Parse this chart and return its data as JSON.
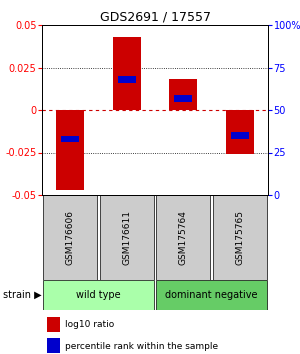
{
  "title": "GDS2691 / 17557",
  "samples": [
    "GSM176606",
    "GSM176611",
    "GSM175764",
    "GSM175765"
  ],
  "log10_ratio": [
    -0.047,
    0.043,
    0.018,
    -0.026
  ],
  "percentile_rank": [
    0.33,
    0.68,
    0.57,
    0.35
  ],
  "ylim": [
    -0.05,
    0.05
  ],
  "yticks_left": [
    -0.05,
    -0.025,
    0,
    0.025,
    0.05
  ],
  "yticks_right": [
    0,
    25,
    50,
    75,
    100
  ],
  "groups": [
    {
      "label": "wild type",
      "samples": [
        0,
        1
      ],
      "color": "#aaffaa"
    },
    {
      "label": "dominant negative",
      "samples": [
        2,
        3
      ],
      "color": "#66cc66"
    }
  ],
  "bar_color": "#cc0000",
  "percentile_color": "#0000cc",
  "group_label": "strain",
  "legend_items": [
    {
      "color": "#cc0000",
      "label": "log10 ratio"
    },
    {
      "color": "#0000cc",
      "label": "percentile rank within the sample"
    }
  ],
  "hline_zero_color": "#cc0000",
  "bar_width": 0.5
}
